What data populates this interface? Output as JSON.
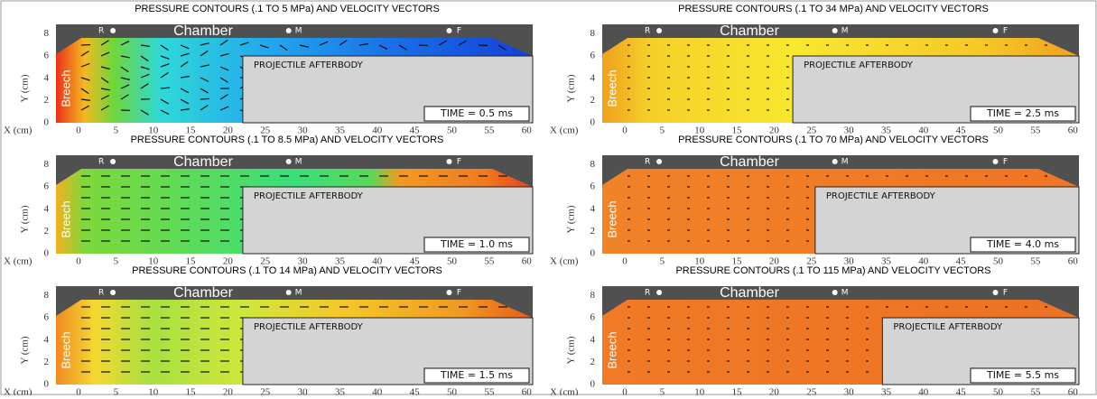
{
  "panels": [
    {
      "title": "PRESSURE CONTOURS (.1 TO 5 MPa) AND VELOCITY VECTORS",
      "time": "TIME = 0.5 ms"
    },
    {
      "title": "PRESSURE CONTOURS (.1 TO 8.5 MPa) AND VELOCITY VECTORS",
      "time": "TIME = 1.0 ms"
    },
    {
      "title": "PRESSURE CONTOURS (.1 TO 14 MPa) AND VELOCITY VECTORS",
      "time": "TIME = 1.5 ms"
    },
    {
      "title": "PRESSURE CONTOURS (.1 TO 34 MPa) AND VELOCITY VECTORS",
      "time": "TIME = 2.5 ms"
    },
    {
      "title": "PRESSURE CONTOURS (.1 TO 70 MPa) AND VELOCITY VECTORS",
      "time": "TIME = 4.0 ms"
    },
    {
      "title": "PRESSURE CONTOURS (.1 TO 115 MPa) AND VELOCITY VECTORS",
      "time": "TIME = 5.5 ms"
    }
  ],
  "labels": {
    "chamber": "Chamber",
    "breech": "Breech",
    "afterbody": "PROJECTILE AFTERBODY",
    "r": "R",
    "m": "M",
    "f": "F",
    "x_axis": "X (cm)",
    "y_axis": "Y (cm)"
  },
  "xticks": [
    0,
    5,
    10,
    15,
    20,
    25,
    30,
    35,
    40,
    45,
    50,
    55,
    60
  ],
  "yticks": [
    0,
    2,
    4,
    6,
    8
  ]
}
